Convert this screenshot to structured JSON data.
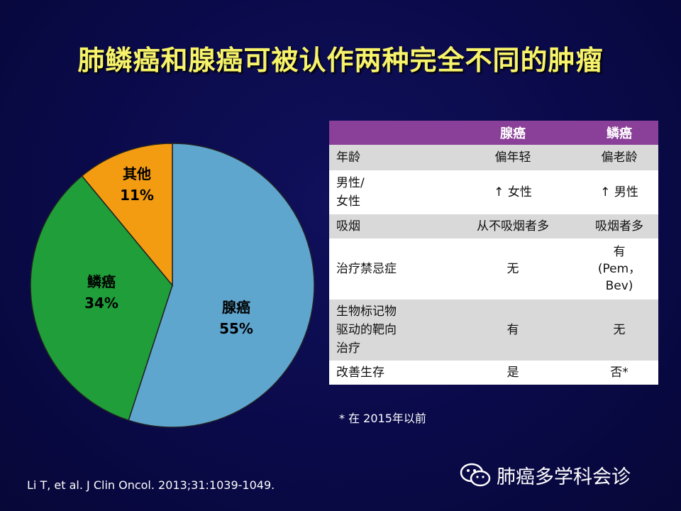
{
  "title": "肺鳞癌和腺癌可被认作两种完全不同的肿瘤",
  "chart_data": {
    "type": "pie",
    "slices": [
      {
        "label": "腺癌",
        "percent_label": "55%",
        "value": 55,
        "color": "#5fa6cf"
      },
      {
        "label": "鳞癌",
        "percent_label": "34%",
        "value": 34,
        "color": "#1f9e3a"
      },
      {
        "label": "其他",
        "percent_label": "11%",
        "value": 11,
        "color": "#f39c12"
      }
    ]
  },
  "table": {
    "headers": [
      "",
      "腺癌",
      "鳞癌"
    ],
    "rows": [
      {
        "c0": "年龄",
        "c1": "偏年轻",
        "c2": "偏老龄"
      },
      {
        "c0": "男性/\n女性",
        "c1": "↑ 女性",
        "c2": "↑ 男性"
      },
      {
        "c0": "吸烟",
        "c1": "从不吸烟者多",
        "c2": "吸烟者多"
      },
      {
        "c0": "治疗禁忌症",
        "c1": "无",
        "c2": "有\n(Pem，Bev)"
      },
      {
        "c0": "生物标记物\n驱动的靶向\n治疗",
        "c1": "有",
        "c2": "无"
      },
      {
        "c0": "改善生存",
        "c1": "是",
        "c2": "否*"
      }
    ]
  },
  "footnote": "* 在 2015年以前",
  "citation": "Li T, et al. J Clin Oncol. 2013;31:1039-1049.",
  "watermark": {
    "text": "肺癌多学科会诊",
    "icon": "wechat-icon"
  }
}
